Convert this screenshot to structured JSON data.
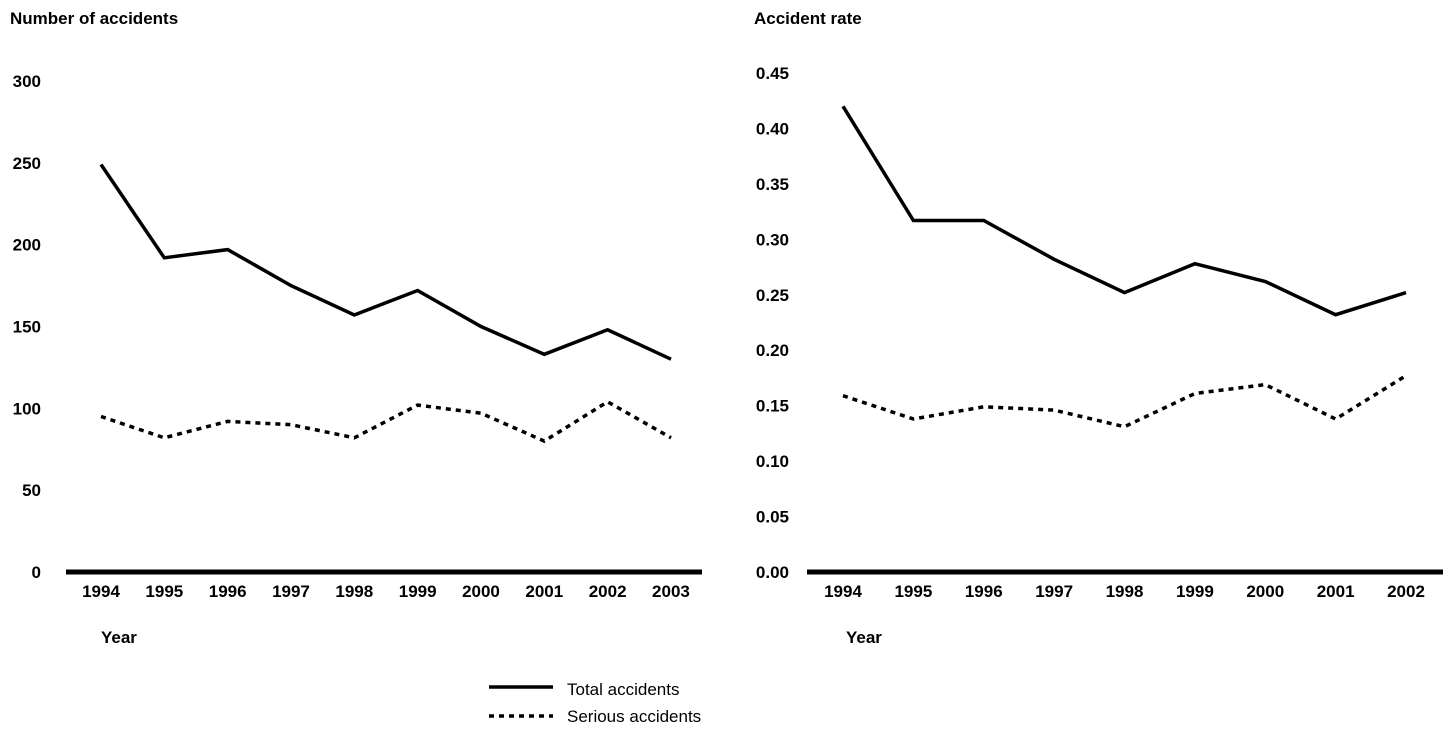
{
  "chart_data": [
    {
      "type": "line",
      "ylabel": "Number of accidents",
      "xlabel": "Year",
      "categories": [
        "1994",
        "1995",
        "1996",
        "1997",
        "1998",
        "1999",
        "2000",
        "2001",
        "2002",
        "2003"
      ],
      "ylim": [
        0,
        300
      ],
      "yticks": [
        "0",
        "50",
        "100",
        "150",
        "200",
        "250",
        "300"
      ],
      "grid": false,
      "series": [
        {
          "name": "Total accidents",
          "style": "solid",
          "values": [
            249,
            192,
            197,
            175,
            157,
            172,
            150,
            133,
            148,
            130
          ]
        },
        {
          "name": "Serious accidents",
          "style": "dotted",
          "values": [
            95,
            82,
            92,
            90,
            82,
            102,
            97,
            80,
            104,
            82
          ]
        }
      ]
    },
    {
      "type": "line",
      "ylabel": "Accident rate",
      "xlabel": "Year",
      "categories": [
        "1994",
        "1995",
        "1996",
        "1997",
        "1998",
        "1999",
        "2000",
        "2001",
        "2002"
      ],
      "ylim": [
        0,
        0.45
      ],
      "yticks": [
        "0.00",
        "0.05",
        "0.10",
        "0.15",
        "0.20",
        "0.25",
        "0.30",
        "0.35",
        "0.40",
        "0.45"
      ],
      "grid": false,
      "series": [
        {
          "name": "Total accidents",
          "style": "solid",
          "values": [
            0.42,
            0.317,
            0.317,
            0.282,
            0.252,
            0.278,
            0.262,
            0.232,
            0.252
          ]
        },
        {
          "name": "Serious accidents",
          "style": "dotted",
          "values": [
            0.159,
            0.138,
            0.149,
            0.146,
            0.131,
            0.161,
            0.169,
            0.138,
            0.177
          ]
        }
      ]
    }
  ],
  "legend": {
    "position": "bottom-center",
    "items": [
      {
        "label": "Total accidents",
        "style": "solid"
      },
      {
        "label": "Serious accidents",
        "style": "dotted"
      }
    ]
  },
  "colors": {
    "line": "#000000",
    "axis": "#000000",
    "background": "#ffffff"
  }
}
